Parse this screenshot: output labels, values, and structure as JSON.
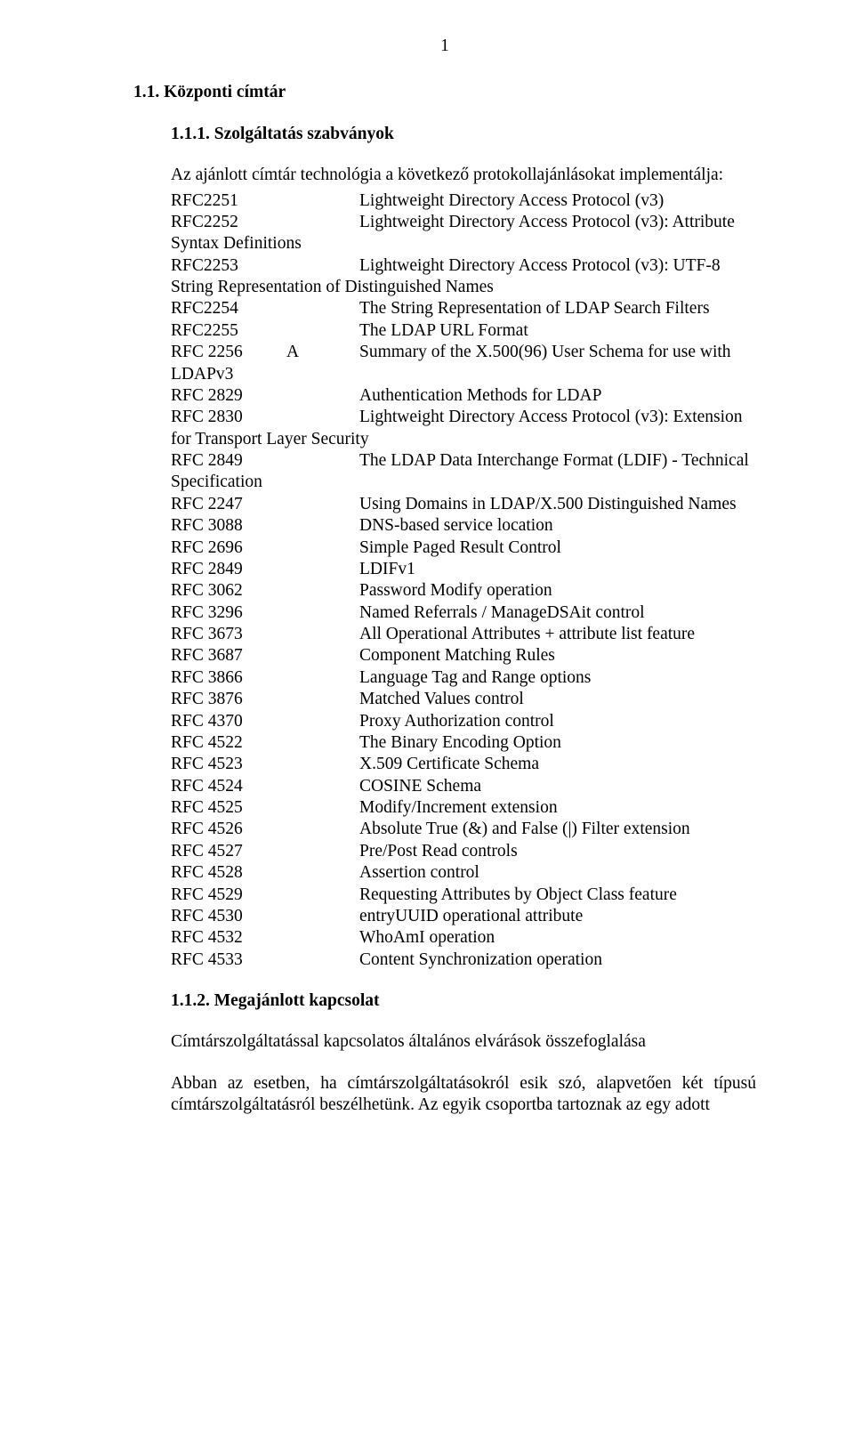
{
  "colors": {
    "background": "#ffffff",
    "text": "#000000"
  },
  "typography": {
    "font_family": "Times New Roman",
    "body_fontsize_pt": 15,
    "heading_fontweight": "bold"
  },
  "page_number": "1",
  "heading1": "1.1.  Központi címtár",
  "heading2": "1.1.1.  Szolgáltatás szabványok",
  "intro": "Az ajánlott címtár technológia a következő protokollajánlásokat implementálja:",
  "rfc": {
    "r2251": {
      "key": "RFC2251",
      "desc": "Lightweight Directory Access Protocol (v3)"
    },
    "r2252": {
      "key": "RFC2252",
      "desc": "Lightweight Directory Access Protocol (v3): Attribute",
      "cont": "Syntax Definitions"
    },
    "r2253": {
      "key": "RFC2253",
      "desc": "Lightweight Directory Access Protocol (v3): UTF-8",
      "cont": "String Representation of Distinguished Names"
    },
    "r2254": {
      "key": "RFC2254",
      "desc": "The String Representation of LDAP Search Filters"
    },
    "r2255": {
      "key": "RFC2255",
      "desc": "The LDAP URL Format"
    },
    "r2256": {
      "key": "RFC 2256",
      "a": "A",
      "desc": "Summary  of  the  X.500(96)  User  Schema  for  use  with",
      "cont": "LDAPv3"
    },
    "r2829": {
      "key": "RFC 2829",
      "desc": "Authentication Methods for LDAP"
    },
    "r2830": {
      "key": "RFC 2830",
      "desc": "Lightweight Directory Access Protocol (v3): Extension",
      "cont": "for Transport Layer Security"
    },
    "r2849": {
      "key": "RFC 2849",
      "desc": "The LDAP Data Interchange Format (LDIF) - Technical",
      "cont": "Specification"
    },
    "r2247": {
      "key": "RFC 2247",
      "desc": "Using Domains in LDAP/X.500 Distinguished Names"
    },
    "r3088": {
      "key": "RFC 3088",
      "desc": "DNS-based service location"
    },
    "r2696": {
      "key": "RFC 2696",
      "desc": "Simple Paged Result Control"
    },
    "r2849b": {
      "key": "RFC 2849",
      "desc": "LDIFv1"
    },
    "r3062": {
      "key": "RFC 3062",
      "desc": "Password Modify operation"
    },
    "r3296": {
      "key": "RFC 3296",
      "desc": "Named Referrals / ManageDSAit control"
    },
    "r3673": {
      "key": "RFC 3673",
      "desc": "All Operational Attributes + attribute list feature"
    },
    "r3687": {
      "key": "RFC 3687",
      "desc": "Component Matching Rules"
    },
    "r3866": {
      "key": "RFC 3866",
      "desc": "Language Tag and Range options"
    },
    "r3876": {
      "key": "RFC 3876",
      "desc": "Matched Values control"
    },
    "r4370": {
      "key": "RFC 4370",
      "desc": "Proxy Authorization control"
    },
    "r4522": {
      "key": "RFC 4522",
      "desc": "The Binary Encoding Option"
    },
    "r4523": {
      "key": "RFC 4523",
      "desc": "X.509 Certificate Schema"
    },
    "r4524": {
      "key": "RFC 4524",
      "desc": "COSINE Schema"
    },
    "r4525": {
      "key": "RFC 4525",
      "desc": "Modify/Increment extension"
    },
    "r4526": {
      "key": "RFC 4526",
      "desc": "Absolute True (&) and False (|) Filter extension"
    },
    "r4527": {
      "key": "RFC 4527",
      "desc": "Pre/Post Read controls"
    },
    "r4528": {
      "key": "RFC 4528",
      "desc": "Assertion control"
    },
    "r4529": {
      "key": "RFC 4529",
      "desc": "Requesting Attributes by Object Class feature"
    },
    "r4530": {
      "key": "RFC 4530",
      "desc": "entryUUID operational attribute"
    },
    "r4532": {
      "key": "RFC 4532",
      "desc": "WhoAmI operation"
    },
    "r4533": {
      "key": "RFC 4533",
      "desc": "Content Synchronization operation"
    }
  },
  "heading3": "1.1.2.  Megajánlott kapcsolat",
  "closing1": "Címtárszolgáltatással kapcsolatos általános elvárások összefoglalása",
  "closing2": "Abban  az  esetben,  ha  címtárszolgáltatásokról  esik  szó,  alapvetően  két  típusú címtárszolgáltatásról  beszélhetünk.  Az  egyik  csoportba  tartoznak  az  egy  adott"
}
